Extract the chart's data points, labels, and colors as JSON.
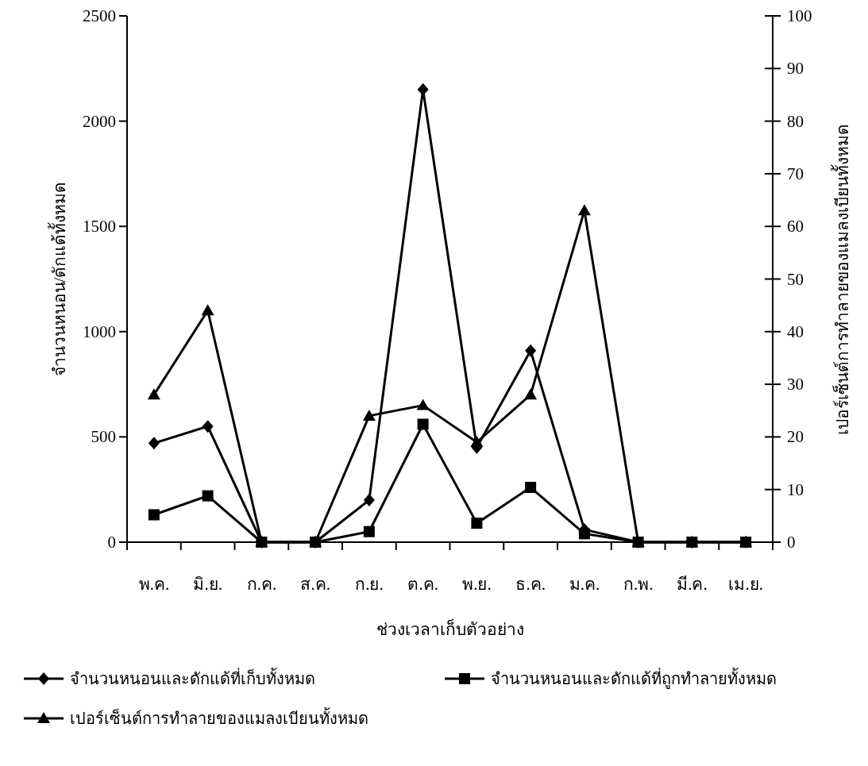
{
  "chart_data": {
    "type": "line",
    "xlabel": "ช่วงเวลาเก็บตัวอย่าง",
    "ylabel": "จำนวนหนอน/ดักแด้ทั้งหมด",
    "y2label": "เปอร์เซ็นต์การทำลายของแมลงเบียนทั้งหมด",
    "categories": [
      "พ.ค.",
      "มิ.ย.",
      "ก.ค.",
      "ส.ค.",
      "ก.ย.",
      "ต.ค.",
      "พ.ย.",
      "ธ.ค.",
      "ม.ค.",
      "ก.พ.",
      "มี.ค.",
      "เม.ย."
    ],
    "ylim": [
      0,
      2500
    ],
    "yticks": [
      0,
      500,
      1000,
      1500,
      2000,
      2500
    ],
    "y2lim": [
      0,
      100
    ],
    "y2ticks": [
      0,
      10,
      20,
      30,
      40,
      50,
      60,
      70,
      80,
      90,
      100
    ],
    "grid": false,
    "legend": "bottom",
    "line_style": "solid",
    "series": [
      {
        "name": "จำนวนหนอนและดักแด้ที่เก็บทั้งหมด",
        "color": "#000000",
        "marker": "diamond",
        "values": [
          470,
          550,
          0,
          0,
          200,
          2150,
          450,
          910,
          60,
          0,
          0,
          0
        ]
      },
      {
        "name": "จำนวนหนอนและดักแด้ที่ถูกทำลายทั้งหมด",
        "color": "#000000",
        "marker": "square",
        "values": [
          130,
          220,
          0,
          0,
          50,
          560,
          90,
          260,
          40,
          0,
          0,
          0
        ]
      },
      {
        "name": "เปอร์เซ็นต์การทำลายของแมลงเบียนทั้งหมด",
        "color": "#000000",
        "marker": "triangle",
        "axis": "y2",
        "values": [
          28,
          44,
          0,
          0,
          24,
          26,
          19,
          28,
          63,
          0,
          0,
          0
        ]
      }
    ]
  }
}
